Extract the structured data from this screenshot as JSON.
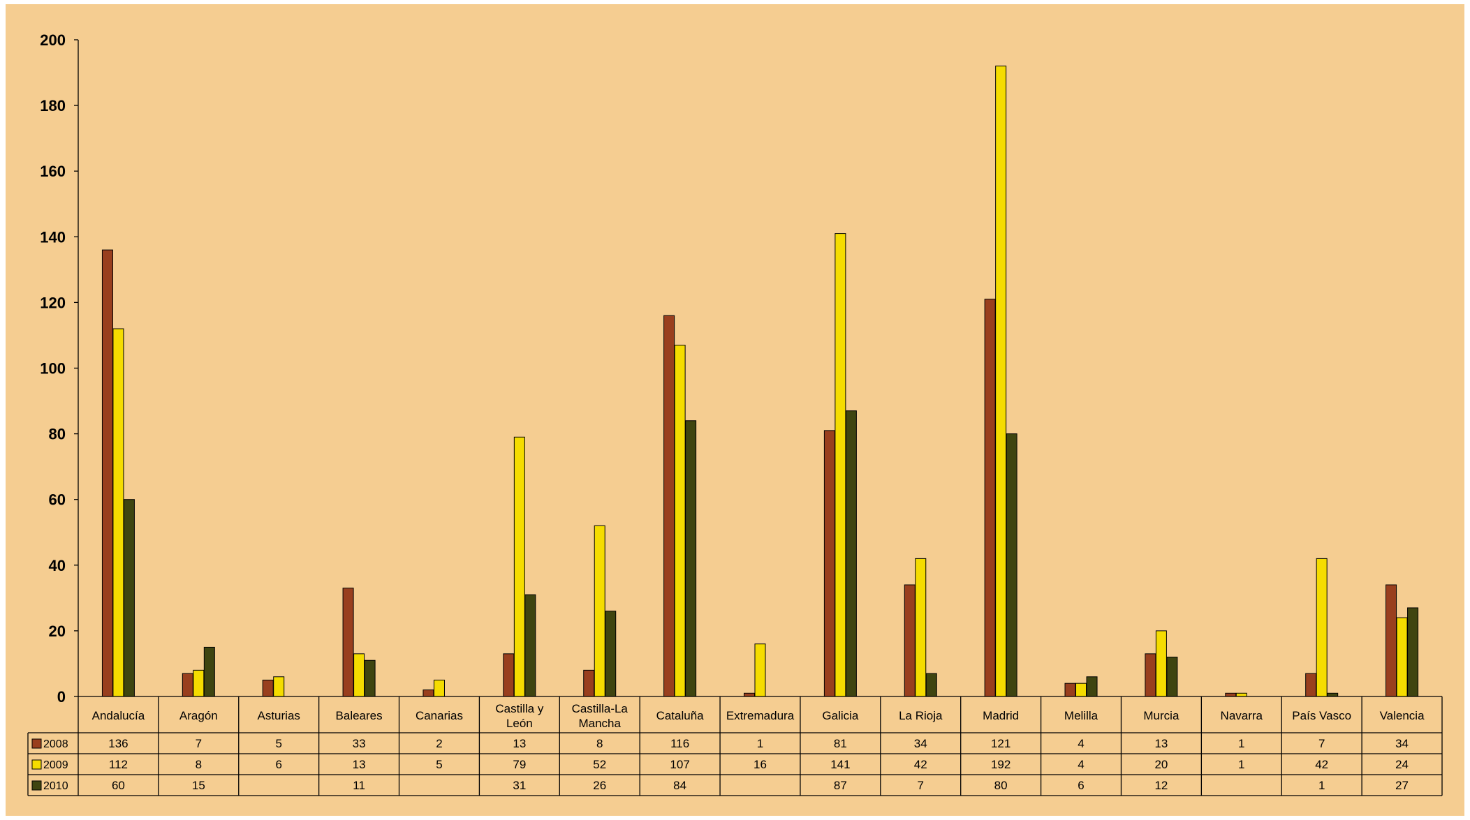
{
  "chart_data": {
    "type": "bar",
    "title": "",
    "xlabel": "",
    "ylabel": "",
    "ylim": [
      0,
      200
    ],
    "yticks": [
      0,
      20,
      40,
      60,
      80,
      100,
      120,
      140,
      160,
      180,
      200
    ],
    "grid": false,
    "legend": "data-table-left",
    "categories": [
      "Andalucía",
      "Aragón",
      "Asturias",
      "Baleares",
      "Canarias",
      "Castilla y León",
      "Castilla-La Mancha",
      "Cataluña",
      "Extremadura",
      "Galicia",
      "La Rioja",
      "Madrid",
      "Melilla",
      "Murcia",
      "Navarra",
      "País Vasco",
      "Valencia"
    ],
    "series": [
      {
        "name": "2008",
        "color": "#993f1e",
        "values": [
          136,
          7,
          5,
          33,
          2,
          13,
          8,
          116,
          1,
          81,
          34,
          121,
          4,
          13,
          1,
          7,
          34
        ]
      },
      {
        "name": "2009",
        "color": "#f5dc00",
        "values": [
          112,
          8,
          6,
          13,
          5,
          79,
          52,
          107,
          16,
          141,
          42,
          192,
          4,
          20,
          1,
          42,
          24
        ]
      },
      {
        "name": "2010",
        "color": "#3f4510",
        "values": [
          60,
          15,
          null,
          11,
          null,
          31,
          26,
          84,
          null,
          87,
          7,
          80,
          6,
          12,
          null,
          1,
          27
        ]
      }
    ]
  }
}
